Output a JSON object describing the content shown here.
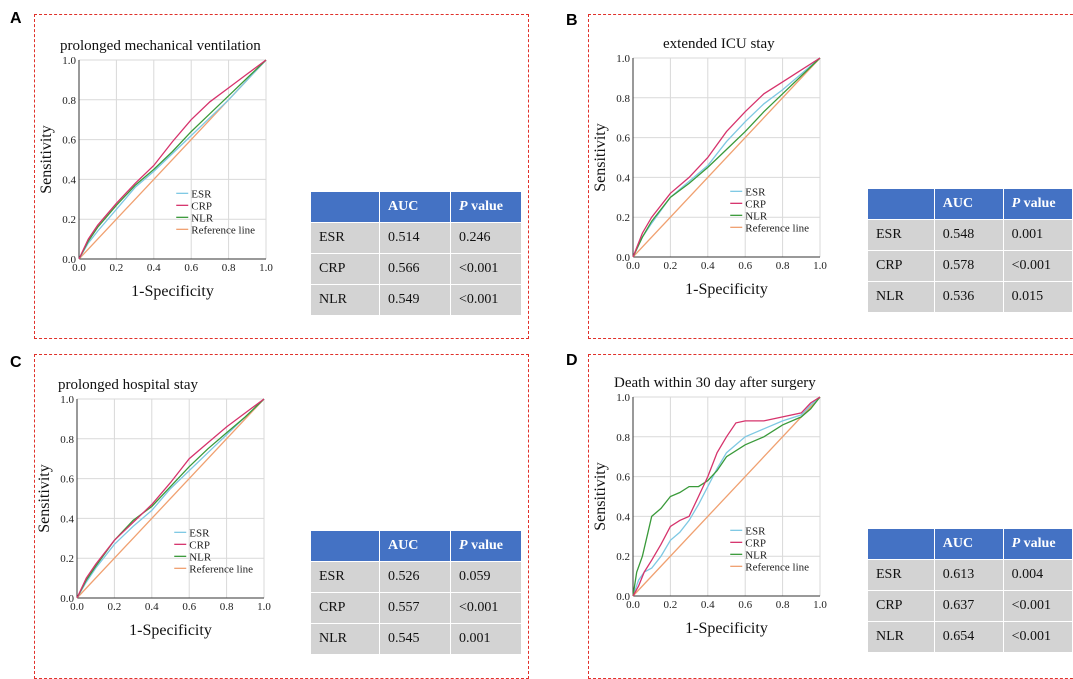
{
  "panels": [
    {
      "letter": "A",
      "title": "prolonged mechanical ventilation",
      "xlabel": "1-Specificity",
      "ylabel": "Sensitivity",
      "legend": [
        "ESR",
        "CRP",
        "NLR",
        "Reference line"
      ],
      "table": {
        "header": [
          "AUC",
          "P",
          " value"
        ],
        "rows": [
          [
            "ESR",
            "0.514",
            "0.246"
          ],
          [
            "CRP",
            "0.566",
            "<0.001"
          ],
          [
            "NLR",
            "0.549",
            "<0.001"
          ]
        ]
      }
    },
    {
      "letter": "B",
      "title": "extended ICU stay",
      "xlabel": "1-Specificity",
      "ylabel": "Sensitivity",
      "legend": [
        "ESR",
        "CRP",
        "NLR",
        "Reference line"
      ],
      "table": {
        "header": [
          "AUC",
          "P",
          " value"
        ],
        "rows": [
          [
            "ESR",
            "0.548",
            "0.001"
          ],
          [
            "CRP",
            "0.578",
            "<0.001"
          ],
          [
            "NLR",
            "0.536",
            "0.015"
          ]
        ]
      }
    },
    {
      "letter": "C",
      "title": "prolonged hospital stay",
      "xlabel": "1-Specificity",
      "ylabel": "Sensitivity",
      "legend": [
        "ESR",
        "CRP",
        "NLR",
        "Reference line"
      ],
      "table": {
        "header": [
          "AUC",
          "P",
          " value"
        ],
        "rows": [
          [
            "ESR",
            "0.526",
            "0.059"
          ],
          [
            "CRP",
            "0.557",
            "<0.001"
          ],
          [
            "NLR",
            "0.545",
            "0.001"
          ]
        ]
      }
    },
    {
      "letter": "D",
      "title": "Death within 30 day after surgery",
      "xlabel": "1-Specificity",
      "ylabel": "Sensitivity",
      "legend": [
        "ESR",
        "CRP",
        "NLR",
        "Reference line"
      ],
      "table": {
        "header": [
          "AUC",
          "P",
          " value"
        ],
        "rows": [
          [
            "ESR",
            "0.613",
            "0.004"
          ],
          [
            "CRP",
            "0.637",
            "<0.001"
          ],
          [
            "NLR",
            "0.654",
            "<0.001"
          ]
        ]
      }
    }
  ],
  "chart_data": [
    {
      "type": "line",
      "title": "prolonged mechanical ventilation",
      "xlabel": "1-Specificity",
      "ylabel": "Sensitivity",
      "xlim": [
        0,
        1
      ],
      "ylim": [
        0,
        1
      ],
      "xticks": [
        "0.0",
        "0.2",
        "0.4",
        "0.6",
        "0.8",
        "1.0"
      ],
      "yticks": [
        "0.0",
        "0.2",
        "0.4",
        "0.6",
        "0.8",
        "1.0"
      ],
      "grid": true,
      "legend_position": "bottom-right",
      "series": [
        {
          "name": "ESR",
          "color": "#7ec8e3",
          "x": [
            0,
            0.05,
            0.1,
            0.2,
            0.3,
            0.4,
            0.5,
            0.6,
            0.7,
            0.8,
            0.9,
            1
          ],
          "y": [
            0,
            0.08,
            0.14,
            0.25,
            0.36,
            0.44,
            0.53,
            0.62,
            0.71,
            0.8,
            0.9,
            1
          ]
        },
        {
          "name": "CRP",
          "color": "#d6336c",
          "x": [
            0,
            0.05,
            0.1,
            0.2,
            0.3,
            0.4,
            0.5,
            0.6,
            0.7,
            0.8,
            0.9,
            1
          ],
          "y": [
            0,
            0.1,
            0.17,
            0.28,
            0.38,
            0.47,
            0.59,
            0.7,
            0.79,
            0.86,
            0.93,
            1
          ]
        },
        {
          "name": "NLR",
          "color": "#3a9a3a",
          "x": [
            0,
            0.05,
            0.1,
            0.2,
            0.3,
            0.4,
            0.5,
            0.6,
            0.7,
            0.8,
            0.9,
            1
          ],
          "y": [
            0,
            0.09,
            0.16,
            0.27,
            0.37,
            0.45,
            0.54,
            0.64,
            0.73,
            0.82,
            0.91,
            1
          ]
        },
        {
          "name": "Reference line",
          "color": "#f0a070",
          "x": [
            0,
            1
          ],
          "y": [
            0,
            1
          ]
        }
      ]
    },
    {
      "type": "line",
      "title": "extended ICU stay",
      "xlabel": "1-Specificity",
      "ylabel": "Sensitivity",
      "xlim": [
        0,
        1
      ],
      "ylim": [
        0,
        1
      ],
      "xticks": [
        "0.0",
        "0.2",
        "0.4",
        "0.6",
        "0.8",
        "1.0"
      ],
      "yticks": [
        "0.0",
        "0.2",
        "0.4",
        "0.6",
        "0.8",
        "1.0"
      ],
      "grid": true,
      "legend_position": "bottom-right",
      "series": [
        {
          "name": "ESR",
          "color": "#7ec8e3",
          "x": [
            0,
            0.05,
            0.1,
            0.2,
            0.3,
            0.4,
            0.5,
            0.6,
            0.7,
            0.8,
            0.9,
            1
          ],
          "y": [
            0,
            0.1,
            0.17,
            0.3,
            0.38,
            0.46,
            0.58,
            0.68,
            0.77,
            0.84,
            0.92,
            1
          ]
        },
        {
          "name": "CRP",
          "color": "#d6336c",
          "x": [
            0,
            0.05,
            0.1,
            0.2,
            0.3,
            0.4,
            0.5,
            0.6,
            0.7,
            0.8,
            0.9,
            1
          ],
          "y": [
            0,
            0.12,
            0.2,
            0.32,
            0.4,
            0.5,
            0.63,
            0.73,
            0.82,
            0.88,
            0.94,
            1
          ]
        },
        {
          "name": "NLR",
          "color": "#3a9a3a",
          "x": [
            0,
            0.05,
            0.1,
            0.2,
            0.3,
            0.4,
            0.5,
            0.6,
            0.7,
            0.8,
            0.9,
            1
          ],
          "y": [
            0,
            0.1,
            0.18,
            0.3,
            0.37,
            0.45,
            0.54,
            0.63,
            0.73,
            0.82,
            0.91,
            1
          ]
        },
        {
          "name": "Reference line",
          "color": "#f0a070",
          "x": [
            0,
            1
          ],
          "y": [
            0,
            1
          ]
        }
      ]
    },
    {
      "type": "line",
      "title": "prolonged hospital stay",
      "xlabel": "1-Specificity",
      "ylabel": "Sensitivity",
      "xlim": [
        0,
        1
      ],
      "ylim": [
        0,
        1
      ],
      "xticks": [
        "0.0",
        "0.2",
        "0.4",
        "0.6",
        "0.8",
        "1.0"
      ],
      "yticks": [
        "0.0",
        "0.2",
        "0.4",
        "0.6",
        "0.8",
        "1.0"
      ],
      "grid": true,
      "legend_position": "bottom-right",
      "series": [
        {
          "name": "ESR",
          "color": "#7ec8e3",
          "x": [
            0,
            0.05,
            0.1,
            0.2,
            0.3,
            0.4,
            0.5,
            0.6,
            0.7,
            0.8,
            0.9,
            1
          ],
          "y": [
            0,
            0.08,
            0.15,
            0.27,
            0.36,
            0.44,
            0.55,
            0.64,
            0.73,
            0.82,
            0.91,
            1
          ]
        },
        {
          "name": "CRP",
          "color": "#d6336c",
          "x": [
            0,
            0.05,
            0.1,
            0.2,
            0.3,
            0.4,
            0.5,
            0.6,
            0.7,
            0.8,
            0.9,
            1
          ],
          "y": [
            0,
            0.1,
            0.17,
            0.29,
            0.38,
            0.47,
            0.58,
            0.7,
            0.78,
            0.86,
            0.93,
            1
          ]
        },
        {
          "name": "NLR",
          "color": "#3a9a3a",
          "x": [
            0,
            0.05,
            0.1,
            0.2,
            0.3,
            0.4,
            0.5,
            0.6,
            0.7,
            0.8,
            0.9,
            1
          ],
          "y": [
            0,
            0.09,
            0.16,
            0.29,
            0.39,
            0.46,
            0.56,
            0.66,
            0.75,
            0.83,
            0.91,
            1
          ]
        },
        {
          "name": "Reference line",
          "color": "#f0a070",
          "x": [
            0,
            1
          ],
          "y": [
            0,
            1
          ]
        }
      ]
    },
    {
      "type": "line",
      "title": "Death within 30 day after surgery",
      "xlabel": "1-Specificity",
      "ylabel": "Sensitivity",
      "xlim": [
        0,
        1
      ],
      "ylim": [
        0,
        1
      ],
      "xticks": [
        "0.0",
        "0.2",
        "0.4",
        "0.6",
        "0.8",
        "1.0"
      ],
      "yticks": [
        "0.0",
        "0.2",
        "0.4",
        "0.6",
        "0.8",
        "1.0"
      ],
      "grid": true,
      "legend_position": "bottom-right",
      "series": [
        {
          "name": "ESR",
          "color": "#7ec8e3",
          "x": [
            0,
            0.03,
            0.06,
            0.1,
            0.15,
            0.2,
            0.25,
            0.3,
            0.35,
            0.4,
            0.45,
            0.5,
            0.6,
            0.7,
            0.8,
            0.9,
            0.95,
            1
          ],
          "y": [
            0,
            0.08,
            0.12,
            0.14,
            0.2,
            0.28,
            0.32,
            0.38,
            0.46,
            0.55,
            0.64,
            0.72,
            0.8,
            0.84,
            0.88,
            0.91,
            0.96,
            1
          ]
        },
        {
          "name": "CRP",
          "color": "#d6336c",
          "x": [
            0,
            0.03,
            0.06,
            0.1,
            0.15,
            0.2,
            0.25,
            0.3,
            0.35,
            0.4,
            0.45,
            0.5,
            0.55,
            0.6,
            0.7,
            0.8,
            0.9,
            0.95,
            1
          ],
          "y": [
            0,
            0.05,
            0.12,
            0.18,
            0.26,
            0.35,
            0.38,
            0.4,
            0.5,
            0.6,
            0.72,
            0.8,
            0.87,
            0.88,
            0.88,
            0.9,
            0.92,
            0.97,
            1
          ]
        },
        {
          "name": "NLR",
          "color": "#3a9a3a",
          "x": [
            0,
            0.02,
            0.05,
            0.08,
            0.1,
            0.15,
            0.2,
            0.25,
            0.3,
            0.35,
            0.4,
            0.45,
            0.5,
            0.6,
            0.7,
            0.8,
            0.9,
            0.95,
            1
          ],
          "y": [
            0,
            0.12,
            0.2,
            0.32,
            0.4,
            0.44,
            0.5,
            0.52,
            0.55,
            0.55,
            0.58,
            0.63,
            0.7,
            0.76,
            0.8,
            0.86,
            0.9,
            0.94,
            1
          ]
        },
        {
          "name": "Reference line",
          "color": "#f0a070",
          "x": [
            0,
            1
          ],
          "y": [
            0,
            1
          ]
        }
      ]
    }
  ]
}
